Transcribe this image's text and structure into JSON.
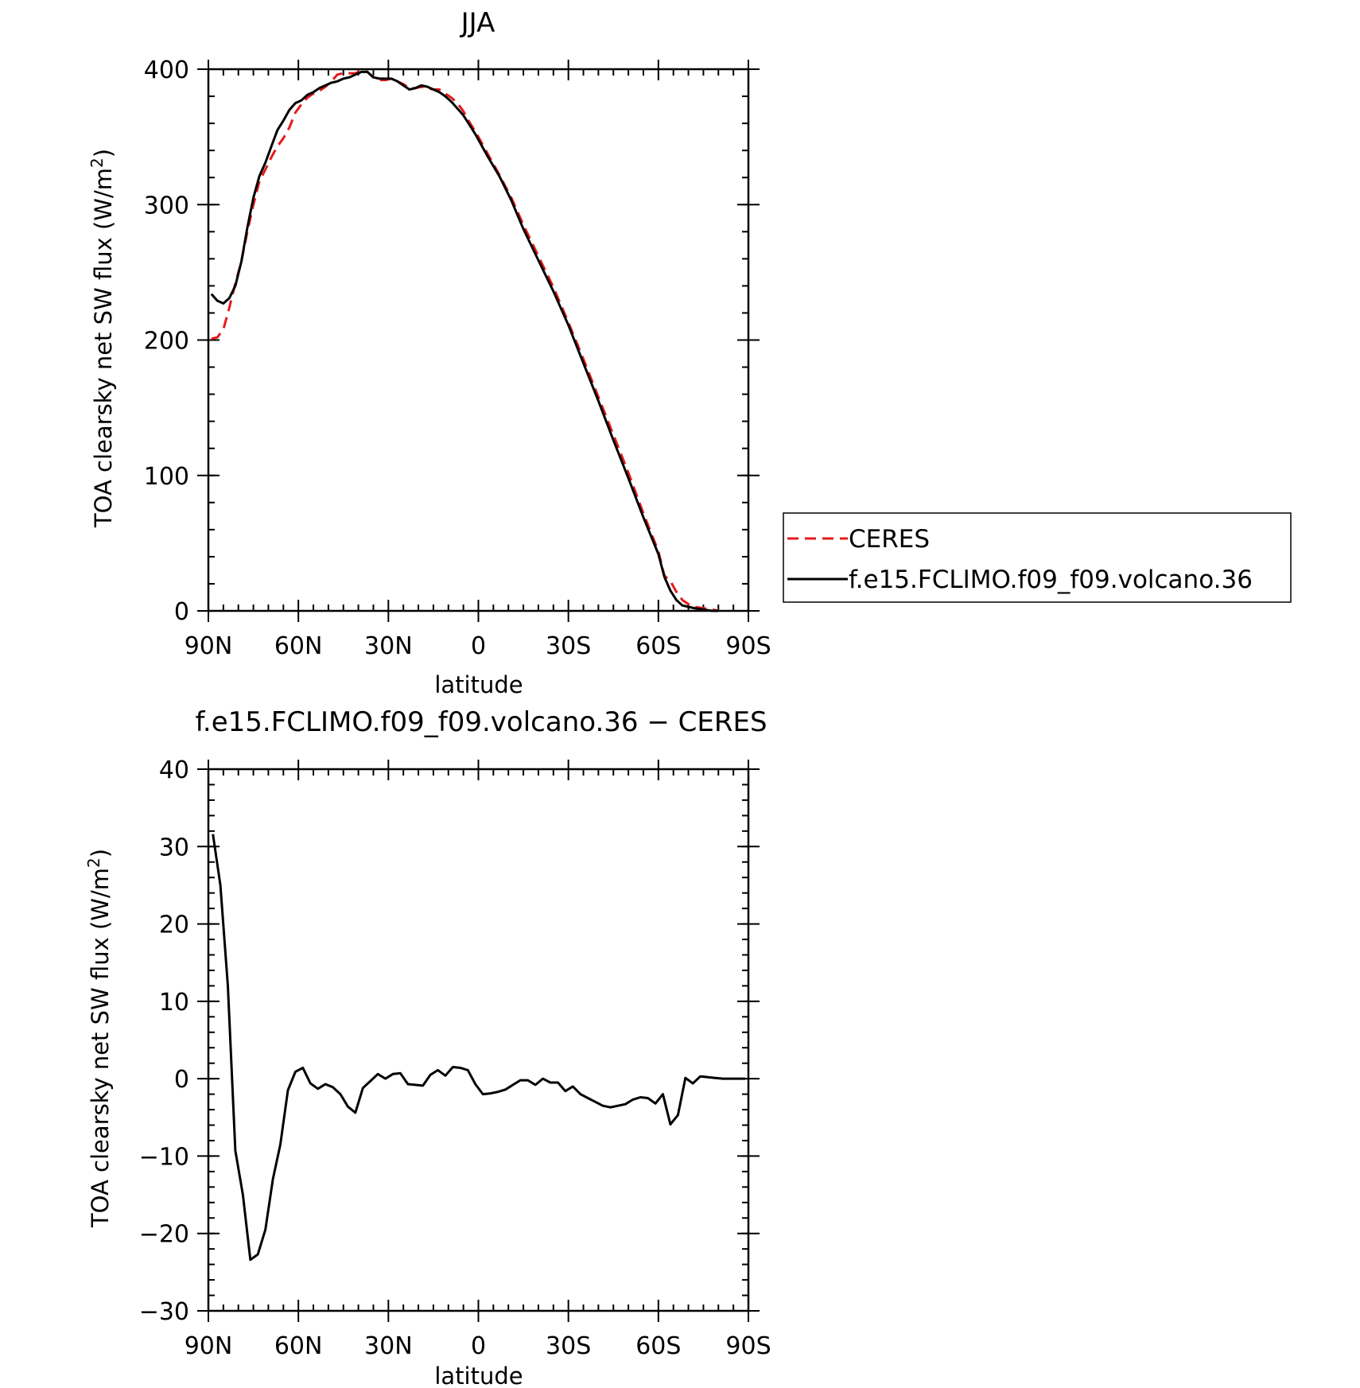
{
  "chart_data": [
    {
      "type": "line",
      "title": "JJA",
      "xlabel": "latitude",
      "ylabel": "TOA clearsky net SW flux (W/m²)",
      "ylabel_main": "TOA clearsky net SW flux (W/m",
      "ylabel_sup": "2",
      "ylabel_close": ")",
      "xlim": [
        90,
        -90
      ],
      "ylim": [
        0,
        400
      ],
      "xticks": [
        {
          "value": 90,
          "label": "90N"
        },
        {
          "value": 60,
          "label": "60N"
        },
        {
          "value": 30,
          "label": "30N"
        },
        {
          "value": 0,
          "label": "0"
        },
        {
          "value": -30,
          "label": "30S"
        },
        {
          "value": -60,
          "label": "60S"
        },
        {
          "value": -90,
          "label": "90S"
        }
      ],
      "yticks": [
        {
          "value": 0,
          "label": "0"
        },
        {
          "value": 100,
          "label": "100"
        },
        {
          "value": 200,
          "label": "200"
        },
        {
          "value": 300,
          "label": "300"
        },
        {
          "value": 400,
          "label": "400"
        }
      ],
      "legend": {
        "placement": "right",
        "entries": [
          "CERES",
          "f.e15.FCLIMO.f09_f09.volcano.36"
        ]
      },
      "series": [
        {
          "name": "CERES",
          "color": "#e41a1c",
          "dash": "dashed",
          "x": [
            89,
            87,
            85,
            83,
            81,
            79,
            77,
            75,
            73,
            71,
            69,
            67,
            65,
            63,
            61,
            59,
            57,
            55,
            53,
            51,
            49,
            47,
            45,
            43,
            41,
            39,
            37,
            35,
            33,
            31,
            29,
            27,
            25,
            23,
            21,
            19,
            17,
            15,
            13,
            11,
            9,
            7,
            5,
            3,
            1,
            -3,
            -7,
            -11,
            -15,
            -20,
            -25,
            -30,
            -35,
            -40,
            -45,
            -50,
            -55,
            -60,
            -62,
            -64,
            -66,
            -68,
            -70,
            -72,
            -75,
            -78,
            -80
          ],
          "values": [
            201,
            202,
            208,
            224,
            242,
            258,
            280,
            300,
            317,
            326,
            335,
            343,
            349,
            357,
            368,
            374,
            379,
            382,
            384,
            387,
            391,
            396,
            397,
            397,
            397,
            399,
            398,
            394,
            392,
            392,
            393,
            391,
            389,
            386,
            386,
            387,
            386,
            385,
            385,
            382,
            379,
            375,
            369,
            361,
            354,
            338,
            322,
            305,
            285,
            262,
            239,
            213,
            186,
            158,
            130,
            102,
            72,
            44,
            26,
            22,
            14,
            8,
            5,
            3,
            2,
            1,
            0
          ]
        },
        {
          "name": "f.e15.FCLIMO.f09_f09.volcano.36",
          "color": "#000000",
          "dash": "solid",
          "x": [
            89,
            87,
            85,
            83,
            81,
            79,
            77,
            75,
            73,
            71,
            69,
            67,
            65,
            63,
            61,
            59,
            57,
            55,
            53,
            51,
            49,
            47,
            45,
            43,
            41,
            39,
            37,
            35,
            33,
            31,
            29,
            27,
            25,
            23,
            21,
            19,
            17,
            15,
            13,
            11,
            9,
            7,
            5,
            3,
            1,
            -3,
            -7,
            -11,
            -15,
            -20,
            -25,
            -30,
            -35,
            -40,
            -45,
            -50,
            -55,
            -60,
            -62,
            -64,
            -66,
            -68,
            -70,
            -72,
            -75,
            -78,
            -80
          ],
          "values": [
            234,
            229,
            227,
            231,
            240,
            258,
            283,
            305,
            321,
            331,
            343,
            355,
            362,
            370,
            375,
            377,
            381,
            383,
            386,
            388,
            390,
            391,
            393,
            394,
            396,
            398,
            398,
            394,
            393,
            393,
            393,
            391,
            388,
            385,
            386,
            388,
            387,
            385,
            383,
            380,
            376,
            371,
            366,
            359,
            352,
            336,
            321,
            303,
            282,
            259,
            236,
            211,
            183,
            155,
            126,
            98,
            69,
            42,
            25,
            15,
            8,
            4,
            3,
            2,
            1,
            0,
            0
          ]
        }
      ]
    },
    {
      "type": "line",
      "title": "f.e15.FCLIMO.f09_f09.volcano.36 − CERES",
      "xlabel": "latitude",
      "ylabel": "TOA clearsky net SW flux (W/m²)",
      "ylabel_main": "TOA clearsky net SW flux (W/m",
      "ylabel_sup": "2",
      "ylabel_close": ")",
      "xlim": [
        90,
        -90
      ],
      "ylim": [
        -30,
        40
      ],
      "xticks": [
        {
          "value": 90,
          "label": "90N"
        },
        {
          "value": 60,
          "label": "60N"
        },
        {
          "value": 30,
          "label": "30N"
        },
        {
          "value": 0,
          "label": "0"
        },
        {
          "value": -30,
          "label": "30S"
        },
        {
          "value": -60,
          "label": "60S"
        },
        {
          "value": -90,
          "label": "90S"
        }
      ],
      "yticks": [
        {
          "value": -30,
          "label": "−30"
        },
        {
          "value": -20,
          "label": "−20"
        },
        {
          "value": -10,
          "label": "−10"
        },
        {
          "value": 0,
          "label": "0"
        },
        {
          "value": 10,
          "label": "10"
        },
        {
          "value": 20,
          "label": "20"
        },
        {
          "value": 30,
          "label": "30"
        },
        {
          "value": 40,
          "label": "40"
        }
      ],
      "series": [
        {
          "color": "#000000",
          "dash": "solid",
          "x": [
            88.5,
            86,
            83.5,
            81,
            78.5,
            76,
            73.5,
            71,
            68.5,
            66,
            63.5,
            61,
            58.5,
            56,
            53.5,
            51,
            48.5,
            46,
            43.5,
            41,
            38.5,
            36,
            33.5,
            31,
            28.5,
            26,
            23.5,
            21,
            18.5,
            16,
            13.5,
            11,
            8.5,
            6,
            3.5,
            1,
            -1.5,
            -4,
            -6.5,
            -9,
            -11.5,
            -14,
            -16.5,
            -19,
            -21.5,
            -24,
            -26.5,
            -29,
            -31.5,
            -34,
            -36.5,
            -39,
            -41.5,
            -44,
            -46.5,
            -49,
            -51.5,
            -54,
            -56.5,
            -59,
            -61.5,
            -64,
            -66.5,
            -69,
            -71.5,
            -74,
            -76.5,
            -79,
            -81.5,
            -84,
            -86.5,
            -89
          ],
          "values": [
            31.6,
            25,
            12,
            -9.3,
            -15,
            -23.4,
            -22.7,
            -19.5,
            -13,
            -8.5,
            -1.5,
            0.9,
            1.4,
            -0.6,
            -1.3,
            -0.7,
            -1.1,
            -2.0,
            -3.6,
            -4.4,
            -1.2,
            -0.3,
            0.6,
            0.0,
            0.6,
            0.7,
            -0.7,
            -0.8,
            -0.9,
            0.5,
            1.1,
            0.4,
            1.5,
            1.4,
            1.1,
            -0.7,
            -2.0,
            -1.9,
            -1.7,
            -1.4,
            -0.8,
            -0.2,
            -0.2,
            -0.8,
            0.0,
            -0.5,
            -0.5,
            -1.6,
            -1.0,
            -2.0,
            -2.5,
            -3.0,
            -3.5,
            -3.7,
            -3.5,
            -3.3,
            -2.7,
            -2.4,
            -2.5,
            -3.2,
            -2.0,
            -5.9,
            -4.7,
            0.1,
            -0.6,
            0.3,
            0.2,
            0.1,
            0.0,
            0.0,
            0.0,
            0.0
          ]
        }
      ]
    }
  ]
}
